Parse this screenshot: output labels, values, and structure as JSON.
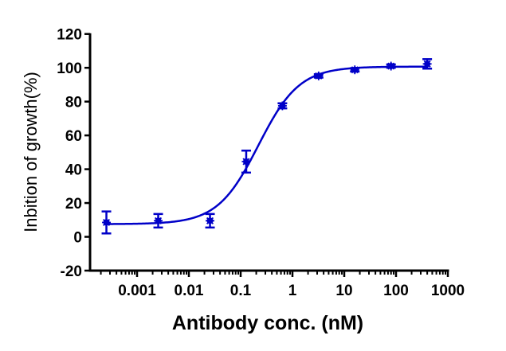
{
  "chart_data": {
    "type": "scatter",
    "xlabel": "Antibody conc. (nM)",
    "ylabel": "Inbition of growth(%)",
    "x_scale": "log",
    "xlim": [
      0.000125,
      1000
    ],
    "ylim": [
      -20,
      120
    ],
    "x_ticks": [
      0.001,
      0.01,
      0.1,
      1,
      10,
      100,
      1000
    ],
    "x_tick_labels": [
      "0.001",
      "0.01",
      "0.1",
      "1",
      "10",
      "100",
      "1000"
    ],
    "y_ticks": [
      -20,
      0,
      20,
      40,
      60,
      80,
      100,
      120
    ],
    "y_tick_labels": [
      "-20",
      "0",
      "20",
      "40",
      "60",
      "80",
      "100",
      "120"
    ],
    "grid": false,
    "color": "#0000c8",
    "points": [
      {
        "x": 0.000256,
        "y": 8.5,
        "err": 6.5
      },
      {
        "x": 0.00256,
        "y": 9.5,
        "err": 4
      },
      {
        "x": 0.0256,
        "y": 9.5,
        "err": 4
      },
      {
        "x": 0.128,
        "y": 44.5,
        "err": 6.5
      },
      {
        "x": 0.64,
        "y": 77.5,
        "err": 1.5
      },
      {
        "x": 3.2,
        "y": 95.2,
        "err": 1
      },
      {
        "x": 16,
        "y": 98.8,
        "err": 1
      },
      {
        "x": 80,
        "y": 101,
        "err": 1
      },
      {
        "x": 400,
        "y": 102.3,
        "err": 2.8
      }
    ],
    "fit": {
      "model": "four-parameter logistic",
      "bottom": 7.5,
      "top": 100.7,
      "ec50": 0.22,
      "hill": 1.1
    }
  }
}
